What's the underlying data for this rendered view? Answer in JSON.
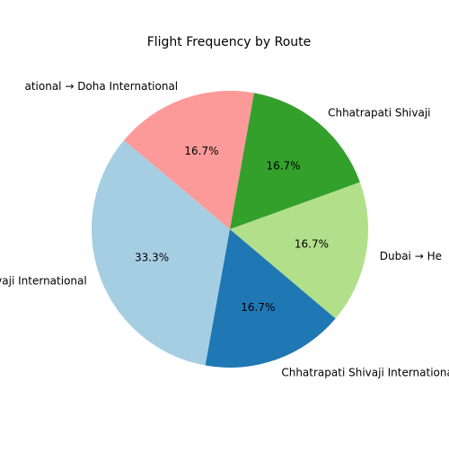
{
  "chart_data": {
    "type": "pie",
    "title": "Flight Frequency by Route",
    "start_angle_deg": 140,
    "direction": "counterclockwise",
    "slices": [
      {
        "label": "Chhatrapati Shivaji International",
        "value": 33.3,
        "display": "33.3%",
        "color": "#a6cee3"
      },
      {
        "label": "Chhatrapati Shivaji International",
        "value": 16.7,
        "display": "16.7%",
        "color": "#1f78b4"
      },
      {
        "label": "Dubai → He",
        "value": 16.7,
        "display": "16.7%",
        "color": "#b2df8a"
      },
      {
        "label": "Chhatrapati Shivaji",
        "value": 16.7,
        "display": "16.7%",
        "color": "#33a02c"
      },
      {
        "label": "ational → Doha International",
        "value": 16.7,
        "display": "16.7%",
        "color": "#fb9a99"
      }
    ]
  }
}
